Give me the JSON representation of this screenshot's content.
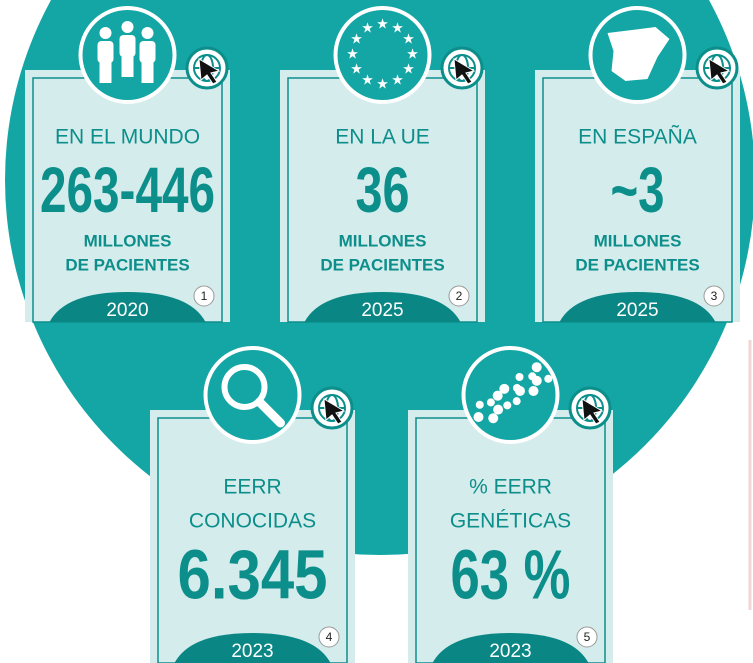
{
  "cards": [
    {
      "label": [
        "EN EL MUNDO"
      ],
      "value": "263-446",
      "unit": [
        "MILLONES",
        "DE PACIENTES"
      ],
      "year": "2020",
      "note": "1"
    },
    {
      "label": [
        "EN LA UE"
      ],
      "value": "36",
      "unit": [
        "MILLONES",
        "DE PACIENTES"
      ],
      "year": "2025",
      "note": "2"
    },
    {
      "label": [
        "EN ESPAÑA"
      ],
      "value": "~3",
      "unit": [
        "MILLONES",
        "DE PACIENTES"
      ],
      "year": "2025",
      "note": "3"
    },
    {
      "label": [
        "EERR",
        "CONOCIDAS"
      ],
      "value": "6.345",
      "year": "2023",
      "note": "4"
    },
    {
      "label": [
        "% EERR",
        "GENÉTICAS"
      ],
      "value": "63 %",
      "year": "2023",
      "note": "5"
    }
  ]
}
